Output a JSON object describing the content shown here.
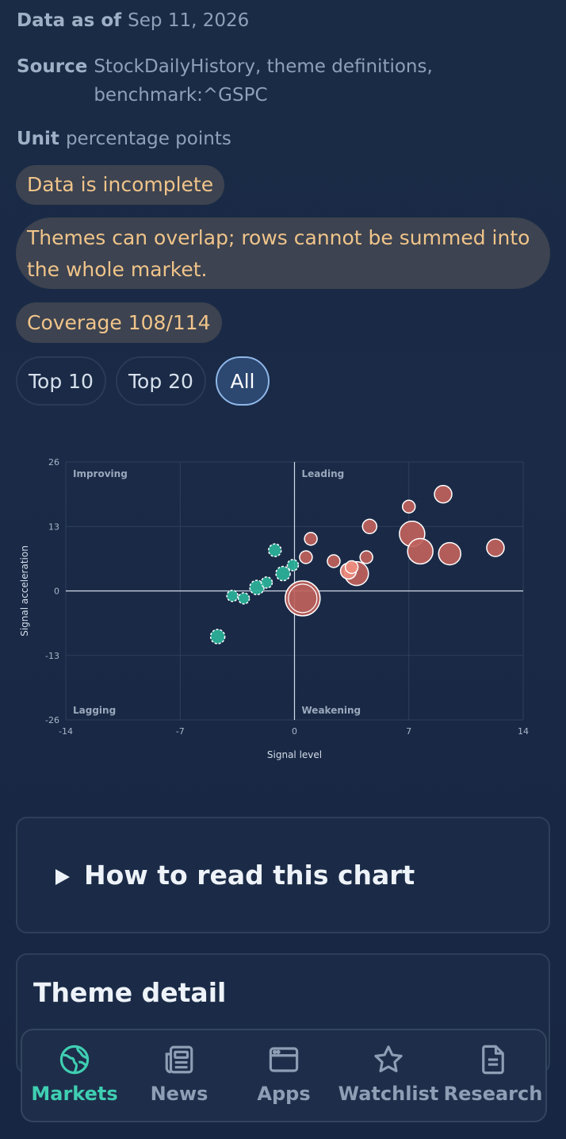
{
  "meta": {
    "as_of_key": "Data as of",
    "as_of_val": "Sep 11, 2026",
    "source_key": "Source",
    "source_line1": "StockDailyHistory, theme definitions,",
    "source_line2": "benchmark:^GSPC",
    "unit_key": "Unit",
    "unit_val": "percentage points"
  },
  "warnings": {
    "incomplete": "Data is incomplete",
    "overlap_line1": "Themes can overlap; rows cannot be summed into",
    "overlap_line2": "the whole market.",
    "coverage": "Coverage 108/114"
  },
  "filters": [
    {
      "label": "Top 10",
      "active": false
    },
    {
      "label": "Top 20",
      "active": false
    },
    {
      "label": "All",
      "active": true
    }
  ],
  "chart_data": {
    "type": "scatter",
    "xlabel": "Signal level",
    "ylabel": "Signal acceleration",
    "xlim": [
      -14,
      14
    ],
    "ylim": [
      -26,
      26
    ],
    "xticks": [
      "-14",
      "-7",
      "0",
      "7",
      "14"
    ],
    "yticks": [
      "26",
      "13",
      "0",
      "-13",
      "-26"
    ],
    "quadrants": {
      "tl": "Improving",
      "tr": "Leading",
      "bl": "Lagging",
      "br": "Weakening"
    },
    "colors": {
      "positive": "#c0625d",
      "negative": "#2bb39b",
      "highlight": "#ec8a7c"
    },
    "points": [
      {
        "x": 0.5,
        "y": -1.5,
        "size": 22,
        "group": "positive",
        "highlighted": true
      },
      {
        "x": 7.2,
        "y": 11.5,
        "size": 16,
        "group": "positive"
      },
      {
        "x": 7.7,
        "y": 8.0,
        "size": 16,
        "group": "positive"
      },
      {
        "x": 3.8,
        "y": 3.5,
        "size": 15,
        "group": "positive"
      },
      {
        "x": 9.5,
        "y": 7.5,
        "size": 14,
        "group": "positive"
      },
      {
        "x": 12.3,
        "y": 8.7,
        "size": 11,
        "group": "positive"
      },
      {
        "x": 9.1,
        "y": 19.5,
        "size": 11,
        "group": "positive"
      },
      {
        "x": 3.3,
        "y": 4.0,
        "size": 10,
        "group": "positive",
        "highlighted": true
      },
      {
        "x": 4.6,
        "y": 13.0,
        "size": 9,
        "group": "positive"
      },
      {
        "x": 7.0,
        "y": 17.0,
        "size": 8,
        "group": "positive"
      },
      {
        "x": 1.0,
        "y": 10.5,
        "size": 8,
        "group": "positive"
      },
      {
        "x": 0.7,
        "y": 6.8,
        "size": 8,
        "group": "positive"
      },
      {
        "x": 2.4,
        "y": 6.0,
        "size": 8,
        "group": "positive"
      },
      {
        "x": 4.4,
        "y": 6.8,
        "size": 8,
        "group": "positive"
      },
      {
        "x": 3.5,
        "y": 4.8,
        "size": 8,
        "group": "positive",
        "highlighted": true
      },
      {
        "x": -4.7,
        "y": -9.2,
        "size": 9,
        "group": "negative"
      },
      {
        "x": -3.8,
        "y": -1.0,
        "size": 7,
        "group": "negative"
      },
      {
        "x": -3.1,
        "y": -1.5,
        "size": 7,
        "group": "negative"
      },
      {
        "x": -2.3,
        "y": 0.7,
        "size": 9,
        "group": "negative"
      },
      {
        "x": -1.7,
        "y": 1.7,
        "size": 7,
        "group": "negative"
      },
      {
        "x": -1.2,
        "y": 8.2,
        "size": 8,
        "group": "negative"
      },
      {
        "x": -0.7,
        "y": 3.5,
        "size": 9,
        "group": "negative"
      },
      {
        "x": -0.1,
        "y": 5.2,
        "size": 7,
        "group": "negative"
      }
    ]
  },
  "cards": {
    "howto": "How to read this chart",
    "detail": "Theme detail"
  },
  "nav": [
    {
      "label": "Markets",
      "icon": "globe-icon",
      "active": true
    },
    {
      "label": "News",
      "icon": "newspaper-icon",
      "active": false
    },
    {
      "label": "Apps",
      "icon": "browser-window-icon",
      "active": false
    },
    {
      "label": "Watchlist",
      "icon": "star-icon",
      "active": false
    },
    {
      "label": "Research",
      "icon": "document-icon",
      "active": false
    }
  ]
}
